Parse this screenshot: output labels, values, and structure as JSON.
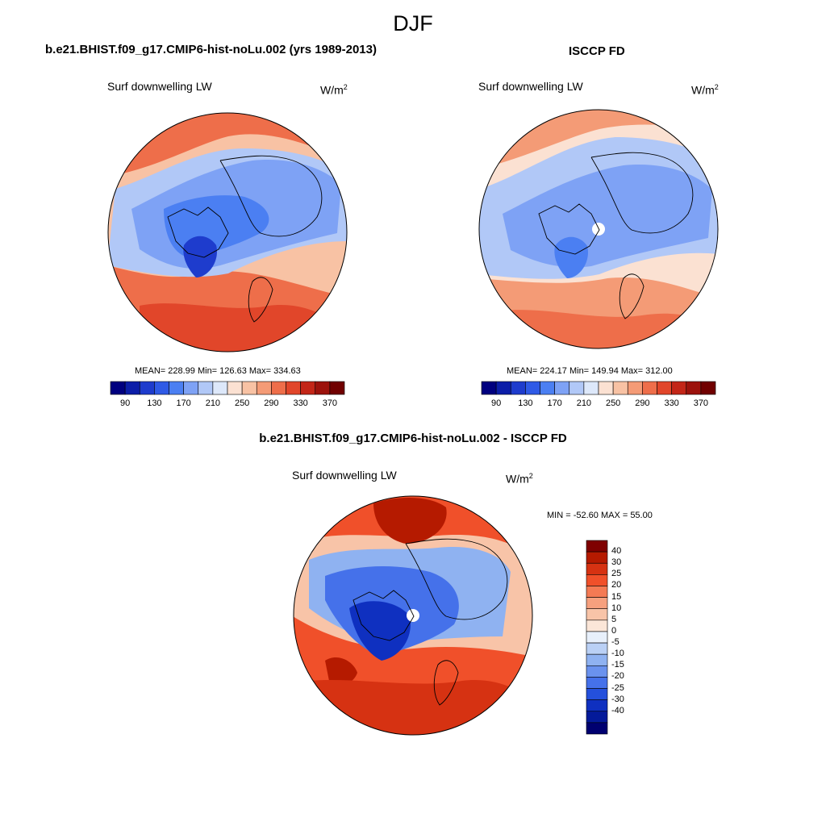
{
  "figure": {
    "title": "DJF"
  },
  "panels": [
    {
      "title": "b.e21.BHIST.f09_g17.CMIP6-hist-noLu.002 (yrs 1989-2013)",
      "variable": "Surf downwelling LW",
      "units_base": "W/m",
      "units_exp": "2",
      "stats": "MEAN= 228.99  Min= 126.63  Max= 334.63",
      "pole_mask": false
    },
    {
      "title": "ISCCP FD",
      "variable": "Surf downwelling LW",
      "units_base": "W/m",
      "units_exp": "2",
      "stats": "MEAN= 224.17  Min= 149.94  Max= 312.00",
      "pole_mask": true
    },
    {
      "title": "b.e21.BHIST.f09_g17.CMIP6-hist-noLu.002 - ISCCP FD",
      "variable": "Surf downwelling LW",
      "units_base": "W/m",
      "units_exp": "2",
      "stats": "MIN = -52.60 MAX =  55.00",
      "pole_mask": true
    }
  ],
  "colorbar_abs": {
    "colors": [
      "#00007f",
      "#0c1ea8",
      "#1e3ccd",
      "#2f5ae6",
      "#4b7ff2",
      "#7ea2f5",
      "#b1c8f7",
      "#dde8fa",
      "#fbe1d2",
      "#f8c2a4",
      "#f49b76",
      "#ee6e4a",
      "#e1462a",
      "#c32618",
      "#9c120c",
      "#700000"
    ],
    "tick_labels": [
      "90",
      "130",
      "170",
      "210",
      "250",
      "290",
      "330",
      "370"
    ]
  },
  "colorbar_diff": {
    "colors": [
      "#7f0000",
      "#b51a00",
      "#d63212",
      "#f0502a",
      "#f47a54",
      "#f6a07e",
      "#f8c4a8",
      "#fbe6d8",
      "#e8f0fb",
      "#bad0f5",
      "#8fb2f1",
      "#6a92ee",
      "#4571ea",
      "#2450dc",
      "#0f30c0",
      "#041a9a",
      "#000070"
    ],
    "tick_labels": [
      "40",
      "30",
      "25",
      "20",
      "15",
      "10",
      "5",
      "0",
      "-5",
      "-10",
      "-15",
      "-20",
      "-25",
      "-30",
      "-40"
    ]
  },
  "chart_data": [
    {
      "type": "heatmap",
      "title": "b.e21.BHIST.f09_g17.CMIP6-hist-noLu.002 (yrs 1989-2013)",
      "variable": "Surf downwelling LW",
      "units": "W/m2",
      "projection": "north polar stereographic",
      "mean": 228.99,
      "min": 126.63,
      "max": 334.63,
      "levels": [
        90,
        100,
        110,
        120,
        130,
        140,
        150,
        160,
        170,
        180,
        190,
        200,
        210,
        220,
        230,
        240,
        250,
        260,
        270,
        280,
        290,
        300,
        310,
        320,
        330,
        340,
        350,
        360,
        370
      ]
    },
    {
      "type": "heatmap",
      "title": "ISCCP FD",
      "variable": "Surf downwelling LW",
      "units": "W/m2",
      "projection": "north polar stereographic",
      "mean": 224.17,
      "min": 149.94,
      "max": 312.0,
      "levels": [
        90,
        100,
        110,
        120,
        130,
        140,
        150,
        160,
        170,
        180,
        190,
        200,
        210,
        220,
        230,
        240,
        250,
        260,
        270,
        280,
        290,
        300,
        310,
        320,
        330,
        340,
        350,
        360,
        370
      ]
    },
    {
      "type": "heatmap",
      "title": "b.e21.BHIST.f09_g17.CMIP6-hist-noLu.002 - ISCCP FD",
      "variable": "Surf downwelling LW",
      "units": "W/m2",
      "projection": "north polar stereographic",
      "min": -52.6,
      "max": 55.0,
      "levels": [
        -40,
        -30,
        -25,
        -20,
        -15,
        -10,
        -5,
        0,
        5,
        10,
        15,
        20,
        25,
        30,
        40
      ]
    }
  ]
}
